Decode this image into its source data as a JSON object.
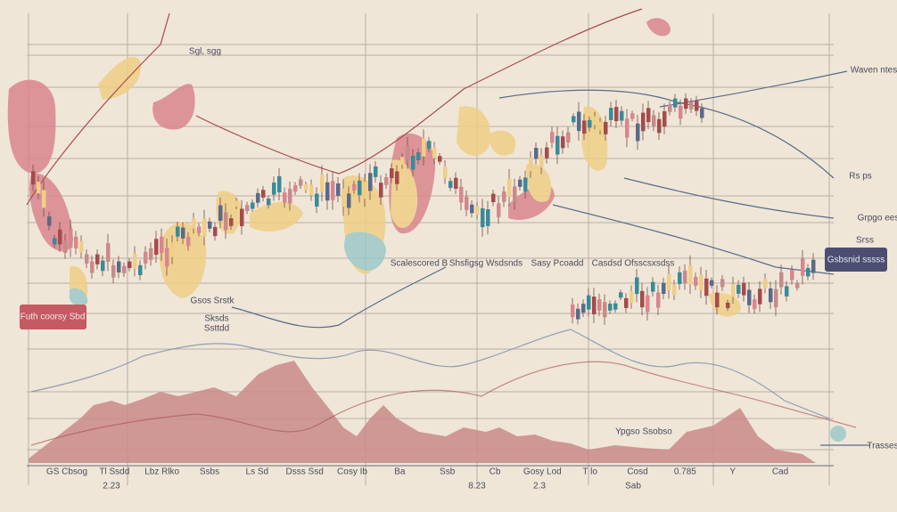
{
  "labels": {
    "top_note": "Sgl, sgg",
    "right_1": "Waven ntes",
    "right_2": "Rs ps",
    "right_3": "Grpgo ees",
    "right_4": "Srss",
    "dark_box": "Gsbsnid sssss",
    "red_box": "Futh coorsy Sbd",
    "mid_1": "Scalescored B",
    "mid_2": "Shsfigsg Wsdsnds",
    "mid_3": "Sasy Pcoadd",
    "mid_4": "Casdsd Ofsscsxsdss",
    "left_note_1": "Gsos Srstk",
    "left_note_2": "Sksds",
    "left_note_3": "Ssttdd",
    "low_note": "Ypgso Ssobso",
    "right_low": "Trasses"
  },
  "axis_labels": [
    "GS Cbsog",
    "Tl Ssdd",
    "Lbz Rlko",
    "Ssbs",
    "Ls Sd",
    "Dsss Ssd",
    "Cosy Ib",
    "Ba",
    "Ssb",
    "Cb",
    "Gosy Lod",
    "T lo",
    "Cosd",
    "0.785",
    "Y",
    "Cad"
  ],
  "axis_labels_2": [
    "2.23",
    "8.23",
    "2.3",
    "Sab"
  ]
}
